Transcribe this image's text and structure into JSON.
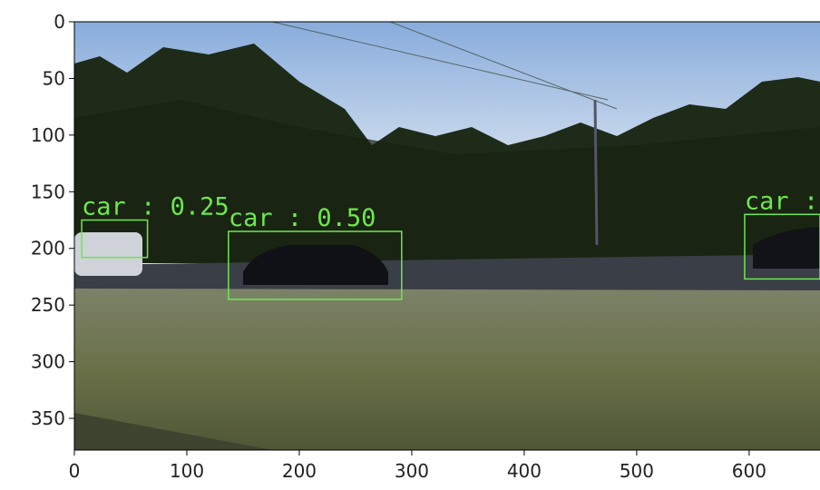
{
  "chart_data": {
    "type": "image",
    "xlim": [
      0,
      663
    ],
    "ylim": [
      0,
      378
    ],
    "y_inverted": true,
    "xticks": [
      0,
      100,
      200,
      300,
      400,
      500,
      600
    ],
    "yticks": [
      0,
      50,
      100,
      150,
      200,
      250,
      300,
      350
    ],
    "box_color": "#6ee84c",
    "boxes": [
      {
        "label": "car : 0.25",
        "x": [
          6.5,
          65
        ],
        "y": [
          175,
          208
        ]
      },
      {
        "label": "car : 0.50",
        "x": [
          137,
          291
        ],
        "y": [
          185,
          245
        ]
      },
      {
        "label": "car :",
        "x": [
          596,
          663
        ],
        "y": [
          170,
          227
        ]
      }
    ]
  }
}
